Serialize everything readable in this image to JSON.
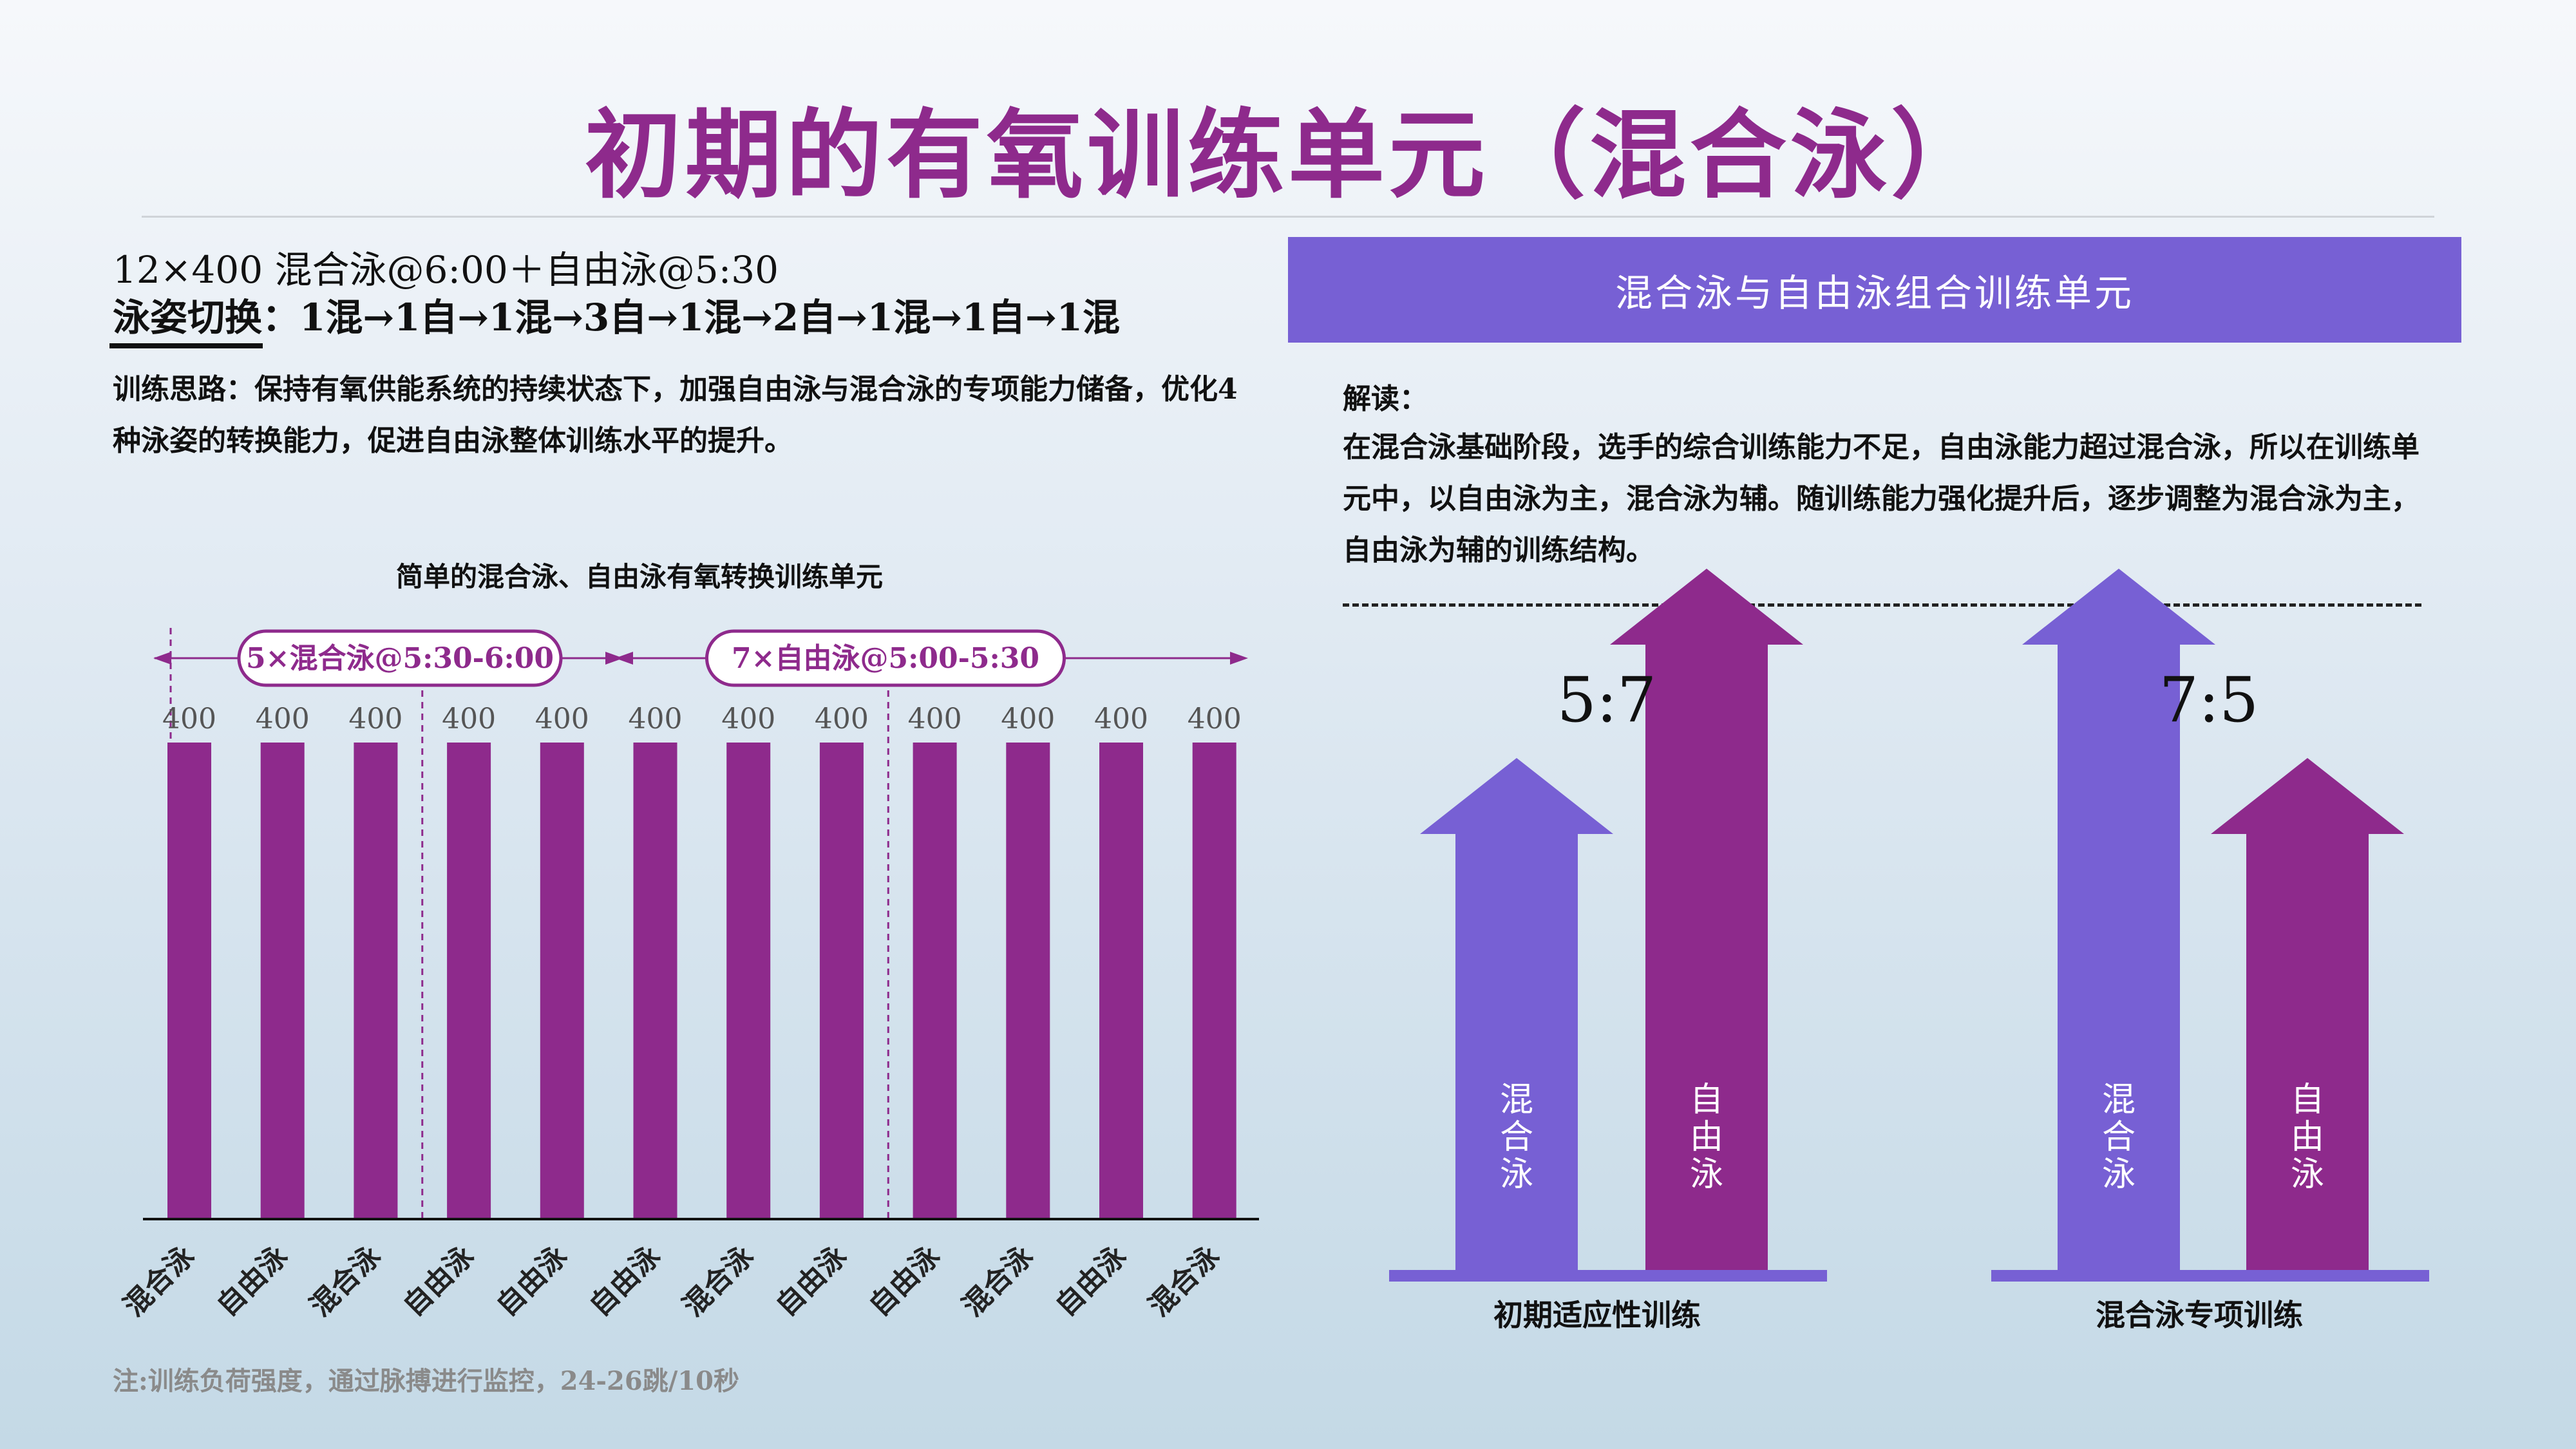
{
  "title": "初期的有氧训练单元（混合泳）",
  "left": {
    "set_line1": "12×400 混合泳@6:00＋自由泳@5:30",
    "set_line2": "泳姿切换：1混→1自→1混→3自→1混→2自→1混→1自→1混",
    "thought": "训练思路：保持有氧供能系统的持续状态下，加强自由泳与混合泳的专项能力储备，优化4种泳姿的转换能力，促进自由泳整体训练水平的提升。",
    "footnote": "注:训练负荷强度，通过脉搏进行监控，24-26跳/10秒"
  },
  "right": {
    "banner": "混合泳与自由泳组合训练单元",
    "interp_label": "解读：",
    "interp_body": "在混合泳基础阶段，选手的综合训练能力不足，自由泳能力超过混合泳，所以在训练单元中，以自由泳为主，混合泳为辅。随训练能力强化提升后，逐步调整为混合泳为主，自由泳为辅的训练结构。"
  },
  "chart_data": {
    "type": "bar",
    "title": "简单的混合泳、自由泳有氧转换训练单元",
    "categories": [
      "混合泳",
      "自由泳",
      "混合泳",
      "自由泳",
      "自由泳",
      "自由泳",
      "混合泳",
      "自由泳",
      "自由泳",
      "混合泳",
      "自由泳",
      "混合泳"
    ],
    "values": [
      400,
      400,
      400,
      400,
      400,
      400,
      400,
      400,
      400,
      400,
      400,
      400
    ],
    "ylim": [
      0,
      400
    ],
    "bar_color": "#8e2a8c",
    "annotations": [
      "5×混合泳@5:30-6:00",
      "7×自由泳@5:00-5:30"
    ]
  },
  "ratio_graphics": [
    {
      "ratio": "5:7",
      "caption": "初期适应性训练",
      "arrows": [
        {
          "label": "混合泳",
          "relative_height": 5,
          "color": "#7760d4"
        },
        {
          "label": "自由泳",
          "relative_height": 7,
          "color": "#8e2a8c"
        }
      ]
    },
    {
      "ratio": "7:5",
      "caption": "混合泳专项训练",
      "arrows": [
        {
          "label": "混合泳",
          "relative_height": 7,
          "color": "#7760d4"
        },
        {
          "label": "自由泳",
          "relative_height": 5,
          "color": "#8e2a8c"
        }
      ]
    }
  ]
}
